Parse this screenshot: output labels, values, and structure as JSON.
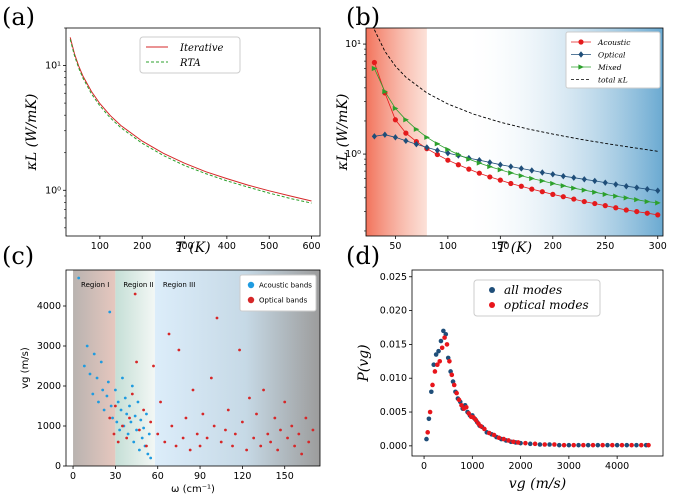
{
  "chart_data": [
    {
      "panel": "(a)",
      "type": "line",
      "xlabel": "T (K)",
      "ylabel": "κL (W/mK)",
      "xlim": [
        20,
        620
      ],
      "ylim": [
        0.43,
        20
      ],
      "yscale": "log",
      "grid": false,
      "legend_position": "top-center",
      "xticks": [
        100,
        200,
        300,
        400,
        500,
        600
      ],
      "yticks": [
        {
          "v": 1,
          "label": "10⁰"
        },
        {
          "v": 10,
          "label": "10¹"
        }
      ],
      "series": [
        {
          "name": "Iterative",
          "color": "#d62728",
          "style": "solid",
          "x": [
            30,
            40,
            50,
            60,
            80,
            100,
            125,
            150,
            200,
            250,
            300,
            350,
            400,
            450,
            500,
            550,
            600
          ],
          "y": [
            16.8,
            12.4,
            9.9,
            8.25,
            6.2,
            4.95,
            3.96,
            3.3,
            2.48,
            1.98,
            1.65,
            1.41,
            1.24,
            1.1,
            0.99,
            0.9,
            0.82
          ]
        },
        {
          "name": "RTA",
          "color": "#2ca02c",
          "style": "dashed",
          "x": [
            30,
            40,
            50,
            60,
            80,
            100,
            125,
            150,
            200,
            250,
            300,
            350,
            400,
            450,
            500,
            550,
            600
          ],
          "y": [
            16.2,
            12.0,
            9.55,
            7.95,
            5.95,
            4.75,
            3.8,
            3.17,
            2.38,
            1.9,
            1.58,
            1.36,
            1.19,
            1.06,
            0.95,
            0.86,
            0.79
          ]
        }
      ]
    },
    {
      "panel": "(b)",
      "type": "line",
      "xlabel": "T (K)",
      "ylabel": "κL (W/mK)",
      "xlim": [
        22,
        305
      ],
      "ylim": [
        0.18,
        14
      ],
      "yscale": "log",
      "grid": false,
      "legend_position": "top-right",
      "xticks": [
        50,
        100,
        150,
        200,
        250,
        300
      ],
      "yticks": [
        {
          "v": 1,
          "label": "10⁰"
        },
        {
          "v": 10,
          "label": "10¹"
        }
      ],
      "shading": {
        "left_region_end": 80,
        "right_region_start": 115
      },
      "series": [
        {
          "name": "Acoustic",
          "color": "#e41a1c",
          "marker": "circle",
          "x": [
            30,
            40,
            50,
            60,
            70,
            80,
            90,
            100,
            110,
            120,
            130,
            140,
            150,
            160,
            170,
            180,
            190,
            200,
            210,
            220,
            230,
            240,
            250,
            260,
            270,
            280,
            290,
            300
          ],
          "y": [
            6.8,
            3.6,
            2.05,
            1.55,
            1.3,
            1.12,
            0.99,
            0.88,
            0.8,
            0.73,
            0.67,
            0.62,
            0.58,
            0.54,
            0.51,
            0.48,
            0.455,
            0.43,
            0.41,
            0.39,
            0.37,
            0.355,
            0.34,
            0.325,
            0.31,
            0.3,
            0.29,
            0.28
          ]
        },
        {
          "name": "Optical",
          "color": "#1f4e79",
          "marker": "diamond",
          "x": [
            30,
            40,
            50,
            60,
            70,
            80,
            90,
            100,
            110,
            120,
            130,
            140,
            150,
            160,
            170,
            180,
            190,
            200,
            210,
            220,
            230,
            240,
            250,
            260,
            270,
            280,
            290,
            300
          ],
          "y": [
            1.45,
            1.5,
            1.42,
            1.32,
            1.23,
            1.15,
            1.08,
            1.02,
            0.97,
            0.92,
            0.88,
            0.84,
            0.8,
            0.77,
            0.74,
            0.71,
            0.68,
            0.655,
            0.63,
            0.61,
            0.59,
            0.57,
            0.55,
            0.53,
            0.51,
            0.495,
            0.48,
            0.465
          ]
        },
        {
          "name": "Mixed",
          "color": "#2ca02c",
          "marker": "triangle-right",
          "x": [
            30,
            40,
            50,
            60,
            70,
            80,
            90,
            100,
            110,
            120,
            130,
            140,
            150,
            160,
            170,
            180,
            190,
            200,
            210,
            220,
            230,
            240,
            250,
            260,
            270,
            280,
            290,
            300
          ],
          "y": [
            6.0,
            3.7,
            2.6,
            2.05,
            1.68,
            1.42,
            1.24,
            1.1,
            0.99,
            0.9,
            0.83,
            0.77,
            0.72,
            0.675,
            0.635,
            0.6,
            0.57,
            0.54,
            0.515,
            0.49,
            0.47,
            0.45,
            0.43,
            0.415,
            0.4,
            0.385,
            0.37,
            0.36
          ]
        },
        {
          "name": "total κL",
          "color": "#000000",
          "style": "dashed",
          "x": [
            30,
            40,
            50,
            60,
            80,
            100,
            125,
            150,
            175,
            200,
            225,
            250,
            275,
            300
          ],
          "y": [
            13.5,
            8.6,
            6.3,
            5.0,
            3.6,
            2.85,
            2.3,
            1.95,
            1.7,
            1.52,
            1.37,
            1.25,
            1.15,
            1.06
          ]
        }
      ]
    },
    {
      "panel": "(c)",
      "type": "scatter",
      "xlabel": "ω (cm⁻¹)",
      "ylabel": "vg (m/s)",
      "xlim": [
        -5,
        175
      ],
      "ylim": [
        0,
        4900
      ],
      "grid": false,
      "legend_position": "top-right",
      "xticks": [
        0,
        30,
        60,
        90,
        120,
        150
      ],
      "yticks": [
        0,
        1000,
        2000,
        3000,
        4000
      ],
      "regions": [
        {
          "label": "Region I",
          "from": 0,
          "to": 30
        },
        {
          "label": "Region II",
          "from": 30,
          "to": 58
        },
        {
          "label": "Region III",
          "from": 58,
          "to": 175
        }
      ],
      "series": [
        {
          "name": "Acoustic bands",
          "color": "#1f9be0",
          "x": [
            4,
            8,
            10,
            12,
            14,
            15,
            17,
            18,
            20,
            21,
            22,
            24,
            25,
            26,
            27,
            28,
            30,
            31,
            32,
            33,
            34,
            35,
            36,
            37,
            38,
            39,
            40,
            41,
            42,
            43,
            44,
            45,
            46,
            47,
            48,
            49,
            50,
            51,
            52,
            53,
            54,
            55
          ],
          "y": [
            4700,
            2500,
            3000,
            2300,
            1800,
            2800,
            2200,
            1600,
            2600,
            1900,
            1400,
            1750,
            2100,
            3850,
            1500,
            1200,
            1900,
            1100,
            1600,
            900,
            1400,
            2200,
            1000,
            1700,
            1300,
            800,
            1500,
            1100,
            2000,
            600,
            1250,
            900,
            1600,
            400,
            1150,
            700,
            950,
            500,
            1300,
            300,
            800,
            200
          ]
        },
        {
          "name": "Optical bands",
          "color": "#d62728",
          "x": [
            26,
            29,
            30,
            32,
            35,
            38,
            40,
            42,
            44,
            45,
            47,
            50,
            52,
            55,
            57,
            60,
            62,
            65,
            68,
            70,
            73,
            75,
            78,
            80,
            83,
            85,
            88,
            90,
            92,
            95,
            98,
            100,
            102,
            105,
            108,
            110,
            113,
            115,
            118,
            120,
            123,
            125,
            128,
            130,
            133,
            135,
            138,
            140,
            143,
            145,
            147,
            150,
            152,
            155,
            157,
            160,
            162,
            165,
            167,
            170
          ],
          "y": [
            1200,
            800,
            1500,
            600,
            1000,
            700,
            1200,
            1800,
            4300,
            2600,
            900,
            1400,
            500,
            1100,
            2500,
            800,
            1600,
            600,
            3300,
            1000,
            500,
            2900,
            700,
            1200,
            400,
            1900,
            800,
            500,
            1300,
            700,
            2200,
            1000,
            3700,
            600,
            900,
            1400,
            500,
            800,
            2900,
            1100,
            400,
            1700,
            700,
            1300,
            500,
            1900,
            800,
            600,
            1200,
            400,
            900,
            1600,
            700,
            1000,
            500,
            800,
            300,
            1200,
            600,
            900
          ]
        }
      ]
    },
    {
      "panel": "(d)",
      "type": "scatter",
      "xlabel": "vg (m/s)",
      "ylabel": "P(vg)",
      "xlim": [
        -250,
        4950
      ],
      "ylim": [
        -0.0015,
        0.026
      ],
      "grid": false,
      "legend_position": "top-center",
      "xticks": [
        0,
        1000,
        2000,
        3000,
        4000
      ],
      "yticks": [
        0.0,
        0.005,
        0.01,
        0.015,
        0.02,
        0.025
      ],
      "series": [
        {
          "name": "all modes",
          "color": "#1f4e79",
          "x": [
            50,
            100,
            150,
            200,
            250,
            300,
            350,
            400,
            450,
            500,
            550,
            600,
            650,
            700,
            750,
            800,
            850,
            900,
            950,
            1000,
            1050,
            1100,
            1150,
            1200,
            1300,
            1400,
            1500,
            1600,
            1700,
            1800,
            1900,
            2000,
            2200,
            2400,
            2600,
            2800,
            3000,
            3200,
            3400,
            3600,
            3800,
            4000,
            4200,
            4400,
            4600
          ],
          "y": [
            0.001,
            0.004,
            0.008,
            0.012,
            0.0135,
            0.014,
            0.0155,
            0.017,
            0.0165,
            0.013,
            0.011,
            0.0095,
            0.008,
            0.007,
            0.0065,
            0.0055,
            0.006,
            0.005,
            0.0045,
            0.0045,
            0.004,
            0.0035,
            0.003,
            0.0028,
            0.002,
            0.0017,
            0.0013,
            0.001,
            0.0008,
            0.0006,
            0.0005,
            0.0004,
            0.0003,
            0.0002,
            0.0002,
            0.0001,
            0.0001,
            0.0001,
            0.0001,
            0.0001,
            0.0001,
            0.0001,
            0.0001,
            0.0001,
            0.0001
          ]
        },
        {
          "name": "optical modes",
          "color": "#e8151b",
          "x": [
            75,
            125,
            175,
            225,
            275,
            325,
            375,
            425,
            475,
            525,
            575,
            625,
            675,
            725,
            775,
            825,
            875,
            925,
            975,
            1025,
            1075,
            1125,
            1175,
            1250,
            1350,
            1450,
            1550,
            1650,
            1750,
            1850,
            1950,
            2100,
            2300,
            2500,
            2700,
            2900,
            3100,
            3300,
            3500,
            3700,
            3900,
            4100,
            4300,
            4500,
            4650
          ],
          "y": [
            0.002,
            0.005,
            0.009,
            0.011,
            0.012,
            0.0125,
            0.0145,
            0.016,
            0.015,
            0.0125,
            0.0105,
            0.009,
            0.0078,
            0.0068,
            0.006,
            0.0055,
            0.0057,
            0.0048,
            0.0043,
            0.0042,
            0.0038,
            0.0033,
            0.0029,
            0.0025,
            0.0019,
            0.0016,
            0.0012,
            0.001,
            0.0008,
            0.0006,
            0.0005,
            0.0004,
            0.0003,
            0.0002,
            0.0002,
            0.0001,
            0.0001,
            0.0001,
            0.0001,
            0.0001,
            0.0001,
            0.0001,
            0.0001,
            0.0001,
            0.0001
          ]
        }
      ]
    }
  ],
  "colors": {
    "regionI": "#c9b8b0",
    "regionII": "#e3ede8",
    "regionIII_start": "#d9ecf9",
    "regionIII_end": "#a3a3a3",
    "shade_left": "#f26b50",
    "shade_right": "#6aa9d1"
  }
}
